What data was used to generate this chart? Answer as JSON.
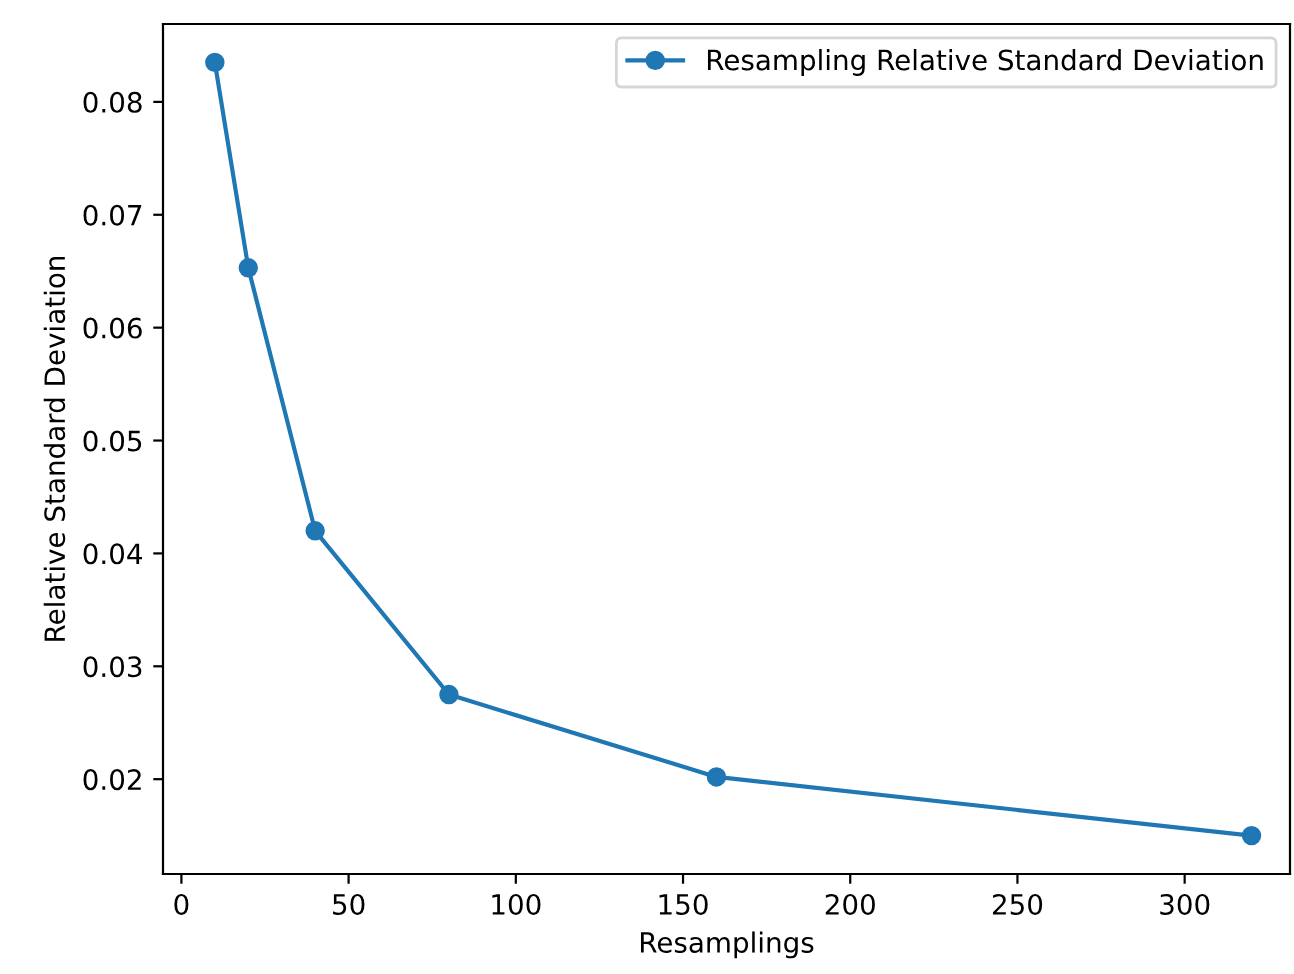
{
  "chart_data": {
    "type": "line",
    "xlabel": "Resamplings",
    "ylabel": "Relative Standard Deviation",
    "x": [
      10,
      20,
      40,
      80,
      160,
      320
    ],
    "series": [
      {
        "name": "Resampling Relative Standard Deviation",
        "color": "#1f77b4",
        "values": [
          0.0835,
          0.0653,
          0.042,
          0.0275,
          0.0202,
          0.015
        ]
      }
    ],
    "xlim": [
      -5.5,
      331.5
    ],
    "xticks": [
      0,
      50,
      100,
      150,
      200,
      250,
      300
    ],
    "ylim": [
      0.0116,
      0.0869
    ],
    "yticks": [
      0.02,
      0.03,
      0.04,
      0.05,
      0.06,
      0.07,
      0.08
    ],
    "marker": "circle",
    "line_style": "solid",
    "legend": "top right",
    "grid": false
  }
}
